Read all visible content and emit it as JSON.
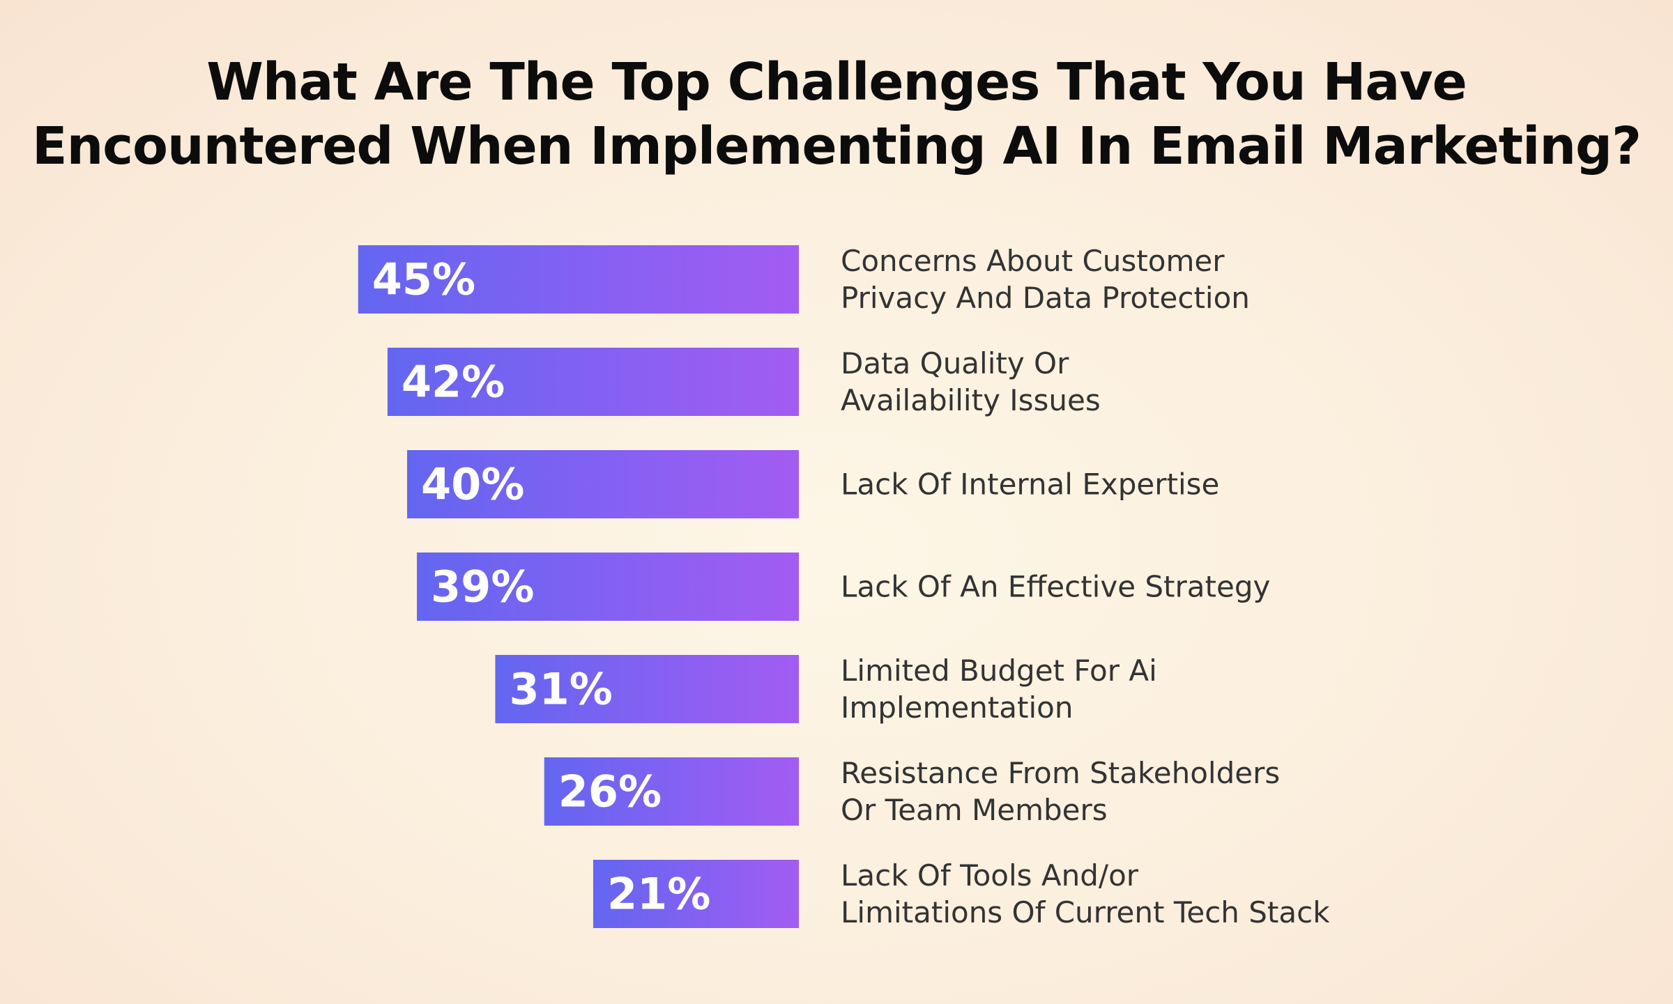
{
  "title": {
    "line1": "What Are The Top Challenges That You Have",
    "line2": "Encountered When Implementing AI In Email Marketing?"
  },
  "colors": {
    "bar_start": "#6366f1",
    "bar_end": "#a35cf2",
    "label": "#333333",
    "title": "#0c0c0c"
  },
  "chart_data": {
    "type": "bar",
    "orientation": "horizontal",
    "title": "What Are The Top Challenges That You Have Encountered When Implementing AI In Email Marketing?",
    "unit": "%",
    "categories": [
      [
        "Concerns About Customer",
        "Privacy And Data Protection"
      ],
      [
        "Data Quality Or",
        "Availability Issues"
      ],
      [
        "Lack Of Internal Expertise"
      ],
      [
        "Lack Of An Effective Strategy"
      ],
      [
        "Limited Budget For Ai",
        "Implementation"
      ],
      [
        "Resistance From Stakeholders",
        "Or Team Members"
      ],
      [
        "Lack Of Tools And/or",
        "Limitations Of Current Tech Stack"
      ]
    ],
    "values": [
      45,
      42,
      40,
      39,
      31,
      26,
      21
    ],
    "value_labels": [
      "45%",
      "42%",
      "40%",
      "39%",
      "31%",
      "26%",
      "21%"
    ],
    "grid": false,
    "legend": "none"
  }
}
